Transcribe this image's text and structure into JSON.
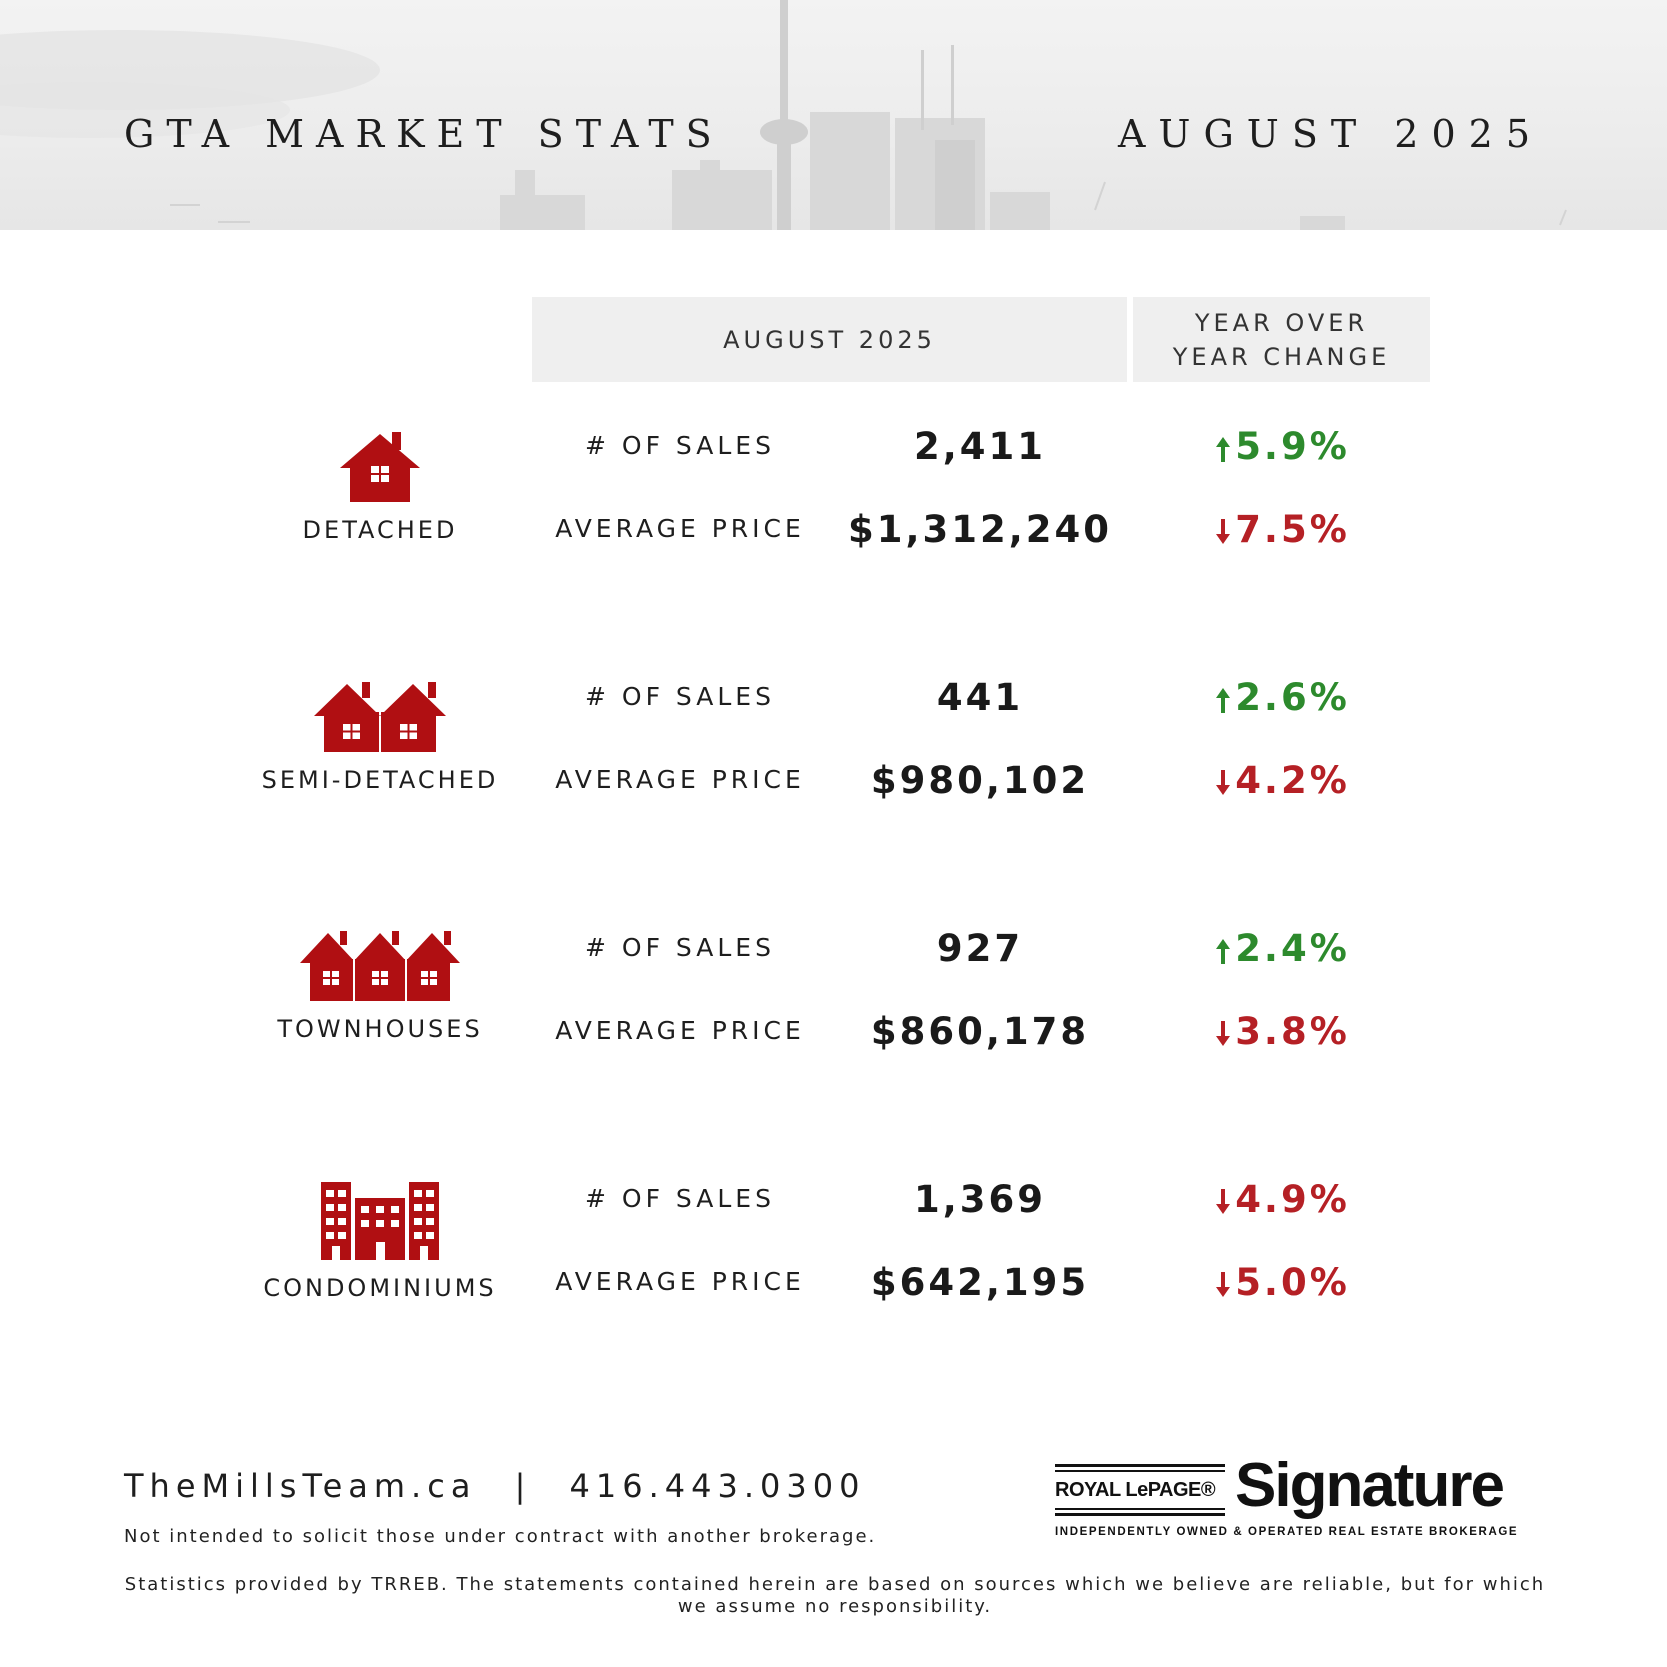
{
  "header": {
    "title": "GTA MARKET STATS",
    "date": "AUGUST 2025"
  },
  "columns": {
    "month": "AUGUST 2025",
    "yoy": "YEAR OVER\nYEAR CHANGE"
  },
  "colors": {
    "accent_red": "#b00f12",
    "up_green": "#2d8a2d",
    "down_red": "#b52025"
  },
  "categories": [
    {
      "name": "DETACHED",
      "icon": "house-icon",
      "sales_label": "# OF SALES",
      "sales_value": "2,411",
      "sales_change": "5.9%",
      "sales_direction": "up",
      "price_label": "AVERAGE PRICE",
      "price_value": "$1,312,240",
      "price_change": "7.5%",
      "price_direction": "down"
    },
    {
      "name": "SEMI-DETACHED",
      "icon": "semi-detached-houses-icon",
      "sales_label": "# OF SALES",
      "sales_value": "441",
      "sales_change": "2.6%",
      "sales_direction": "up",
      "price_label": "AVERAGE PRICE",
      "price_value": "$980,102",
      "price_change": "4.2%",
      "price_direction": "down"
    },
    {
      "name": "TOWNHOUSES",
      "icon": "townhouses-icon",
      "sales_label": "# OF SALES",
      "sales_value": "927",
      "sales_change": "2.4%",
      "sales_direction": "up",
      "price_label": "AVERAGE PRICE",
      "price_value": "$860,178",
      "price_change": "3.8%",
      "price_direction": "down"
    },
    {
      "name": "CONDOMINIUMS",
      "icon": "condo-building-icon",
      "sales_label": "# OF SALES",
      "sales_value": "1,369",
      "sales_change": "4.9%",
      "sales_direction": "down",
      "price_label": "AVERAGE PRICE",
      "price_value": "$642,195",
      "price_change": "5.0%",
      "price_direction": "down"
    }
  ],
  "footer": {
    "website": "TheMillsTeam.ca",
    "separator": "|",
    "phone": "416.443.0300",
    "note": "Not intended to solicit those under contract with another brokerage.",
    "disclaimer": "Statistics provided by TRREB. The statements contained herein are based on sources which we believe are reliable, but for which we assume no responsibility."
  },
  "logo": {
    "brand": "ROYAL LePAGE®",
    "name": "Signature",
    "tagline": "INDEPENDENTLY OWNED & OPERATED REAL ESTATE BROKERAGE"
  }
}
